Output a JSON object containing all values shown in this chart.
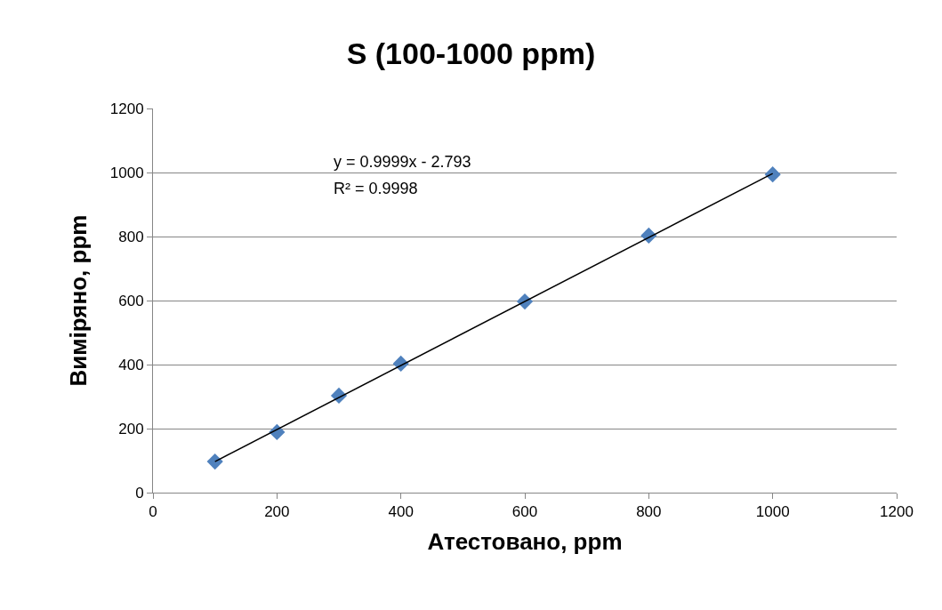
{
  "chart_data": {
    "type": "scatter",
    "title": "S (100-1000 ppm)",
    "xlabel": "Атестовано, ppm",
    "ylabel": "Виміряно, ppm",
    "x": [
      100,
      200,
      300,
      400,
      600,
      800,
      1000
    ],
    "series": [
      {
        "color": "#4f81bd",
        "values": [
          97,
          189,
          303,
          403,
          597,
          803,
          994
        ],
        "marker": "diamond"
      },
      {
        "type": "line",
        "color": "#000000",
        "x": [
          100,
          1000
        ],
        "values": [
          97,
          997
        ],
        "marker": "none",
        "line_style": "solid"
      }
    ],
    "annotations": [
      "y = 0.9999x - 2.793",
      "R² = 0.9998"
    ],
    "xlim": [
      0,
      1200
    ],
    "xticks": [
      0,
      200,
      400,
      600,
      800,
      1000,
      1200
    ],
    "ylim": [
      0,
      1200
    ],
    "yticks": [
      0,
      200,
      400,
      600,
      800,
      1000,
      1200
    ],
    "grid": "y",
    "legend": false
  }
}
